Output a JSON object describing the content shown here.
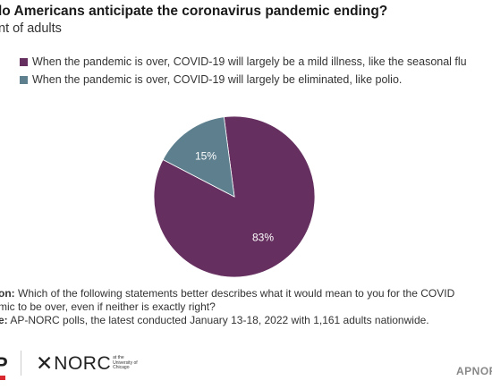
{
  "header": {
    "title": "lo Americans anticipate the coronavirus pandemic ending?",
    "subtitle": "nt of adults"
  },
  "legend": [
    {
      "label": "When the pandemic is over, COVID-19 will largely be a mild illness, like the seasonal flu",
      "color": "#652f5f"
    },
    {
      "label": "When the pandemic is over, COVID-19 will largely be eliminated, like polio.",
      "color": "#5d7f8e"
    }
  ],
  "chart_data": {
    "type": "pie",
    "title": "",
    "series": [
      {
        "name": "When the pandemic is over, COVID-19 will largely be a mild illness, like the seasonal flu",
        "value": 83,
        "label": "83%",
        "color": "#652f5f"
      },
      {
        "name": "When the pandemic is over, COVID-19 will largely be eliminated, like polio.",
        "value": 15,
        "label": "15%",
        "color": "#5d7f8e"
      }
    ],
    "label_color": "#ffffff"
  },
  "notes": {
    "question_label": "on:",
    "question_line1": "Which of the following statements better describes what it would mean to you for the COVID",
    "question_line2": "mic to be over, even if neither is exactly right?",
    "source_label": "e:",
    "source_text": "AP-NORC polls, the latest conducted January 13-18, 2022 with 1,161 adults nationwide."
  },
  "footer": {
    "ap_fragment": "P",
    "norc_star": "✕",
    "norc_text": "NORC",
    "norc_sub": "at the\nUniversity of\nChicago",
    "apnorc_link": "APNOR"
  }
}
